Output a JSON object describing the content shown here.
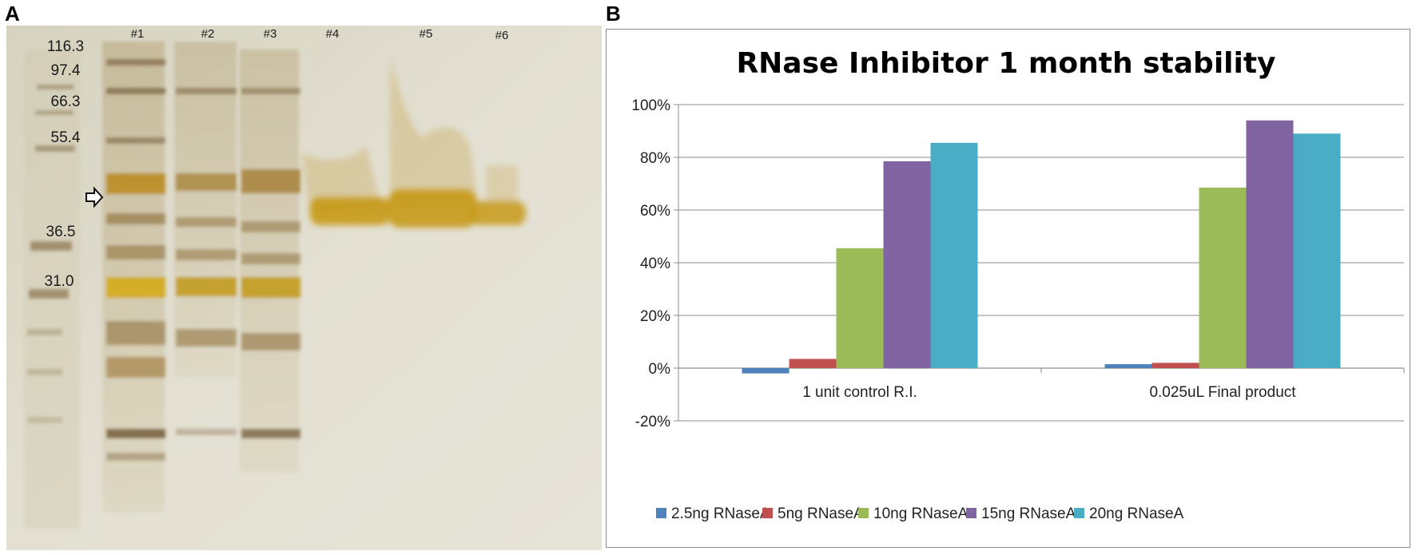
{
  "panel_a": {
    "letter": "A",
    "marker_labels": [
      "116.3",
      "97.4",
      "66.3",
      "55.4",
      "36.5",
      "31.0"
    ],
    "lane_labels": [
      "#1",
      "#2",
      "#3",
      "#4",
      "#5",
      "#6"
    ]
  },
  "panel_b": {
    "letter": "B"
  },
  "chart_data": {
    "type": "bar",
    "title": "RNase Inhibitor 1 month stability",
    "categories": [
      "1 unit control R.I.",
      "0.025uL Final product"
    ],
    "series": [
      {
        "name": "2.5ng RNaseA",
        "color": "#4f81bd",
        "values": [
          -2,
          1.5
        ]
      },
      {
        "name": "5ng RNaseA",
        "color": "#c0504d",
        "values": [
          3.5,
          2
        ]
      },
      {
        "name": "10ng RNaseA",
        "color": "#9bbb59",
        "values": [
          45.5,
          68.5
        ]
      },
      {
        "name": "15ng RNaseA",
        "color": "#8064a2",
        "values": [
          78.5,
          94
        ]
      },
      {
        "name": "20ng RNaseA",
        "color": "#4bacc6",
        "values": [
          85.5,
          89
        ]
      }
    ],
    "ylim": [
      -20,
      100
    ],
    "yticks": [
      "-20%",
      "0%",
      "20%",
      "40%",
      "60%",
      "80%",
      "100%"
    ],
    "ytick_values": [
      -20,
      0,
      20,
      40,
      60,
      80,
      100
    ],
    "xlabel": "",
    "ylabel": "",
    "legend_position": "bottom",
    "grid": true
  }
}
